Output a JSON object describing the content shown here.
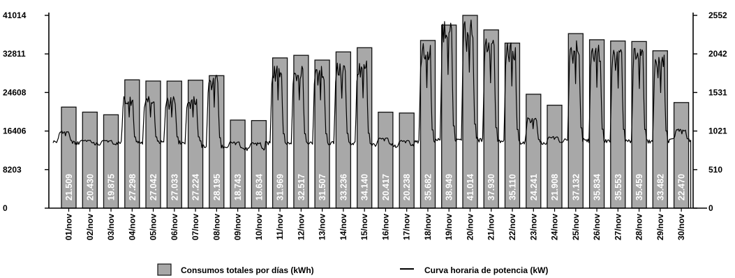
{
  "chart_data": {
    "type": "bar",
    "title": "",
    "xlabel": "",
    "ylabel": "",
    "y2label": "",
    "categories": [
      "01/nov",
      "02/nov",
      "03/nov",
      "04/nov",
      "05/nov",
      "06/nov",
      "07/nov",
      "08/nov",
      "09/nov",
      "10/nov",
      "11/nov",
      "12/nov",
      "13/nov",
      "14/nov",
      "15/nov",
      "16/nov",
      "17/nov",
      "18/nov",
      "19/nov",
      "20/nov",
      "21/nov",
      "22/nov",
      "23/nov",
      "24/nov",
      "25/nov",
      "26/nov",
      "27/nov",
      "28/nov",
      "29/nov",
      "30/nov"
    ],
    "series": [
      {
        "name": "Consumos totales por días (kWh)",
        "axis": "left",
        "values": [
          21509,
          20430,
          19875,
          27298,
          27042,
          27033,
          27224,
          28195,
          18743,
          18634,
          31969,
          32517,
          31507,
          33236,
          34140,
          20417,
          20238,
          35682,
          38949,
          41014,
          37930,
          35110,
          24241,
          21908,
          37132,
          35834,
          35553,
          35459,
          33482,
          22470
        ],
        "value_labels": [
          "21.509",
          "20.430",
          "19.875",
          "27.298",
          "27.042",
          "27.033",
          "27.224",
          "28.195",
          "18.743",
          "18.634",
          "31.969",
          "32.517",
          "31.507",
          "33.236",
          "34.140",
          "20.417",
          "20.238",
          "35.682",
          "38.949",
          "41.014",
          "37.930",
          "35.110",
          "24.241",
          "21.908",
          "37.132",
          "35.834",
          "35.553",
          "35.459",
          "33.482",
          "22.470"
        ]
      },
      {
        "name": "Curva horaria de potencia (kW)",
        "axis": "right",
        "type": "line",
        "daily_base_kw": [
          880,
          860,
          840,
          870,
          870,
          870,
          870,
          820,
          790,
          780,
          860,
          860,
          860,
          860,
          860,
          840,
          820,
          880,
          900,
          920,
          900,
          880,
          870,
          860,
          900,
          890,
          890,
          890,
          880,
          900
        ],
        "daily_peak_kw": [
          1020,
          900,
          900,
          1480,
          1480,
          1480,
          1480,
          1760,
          880,
          870,
          1900,
          1900,
          1900,
          1940,
          1950,
          930,
          900,
          2180,
          2480,
          2520,
          2280,
          2220,
          1200,
          950,
          2260,
          2180,
          2160,
          2150,
          2060,
          1050
        ]
      }
    ],
    "y_left": {
      "min": 0,
      "max": 41014,
      "ticks": [
        0,
        8203,
        16406,
        24608,
        32811,
        41014
      ],
      "tick_labels": [
        "0",
        "8203",
        "16406",
        "24608",
        "32811",
        "41014"
      ]
    },
    "y_right": {
      "min": 0,
      "max": 2552,
      "ticks": [
        0,
        510,
        1021,
        1531,
        2042,
        2552
      ],
      "tick_labels": [
        "0",
        "510",
        "1021",
        "1531",
        "2042",
        "2552"
      ]
    },
    "grid": false,
    "legend_position": "bottom",
    "colors": {
      "bar_fill": "#a8a8a8",
      "bar_stroke": "#111111",
      "line": "#000000",
      "bar_label": "#ffffff"
    }
  }
}
